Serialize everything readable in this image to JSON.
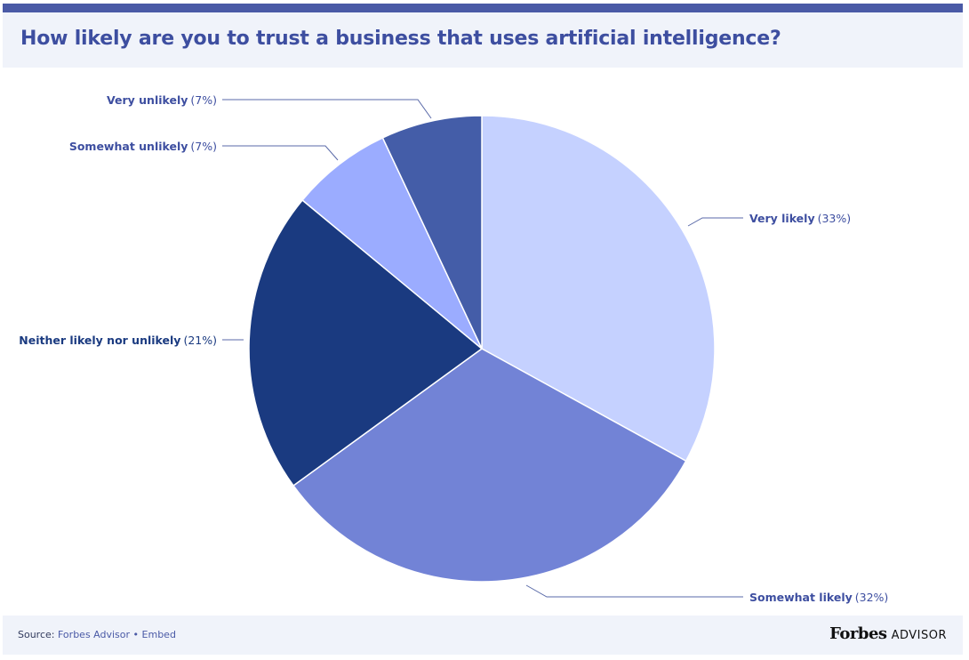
{
  "title": "How likely are you to trust a business that uses artificial intelligence?",
  "chart_data": {
    "type": "pie",
    "title": "How likely are you to trust a business that uses artificial intelligence?",
    "slices": [
      {
        "label": "Very likely",
        "pct_text": "(33%)",
        "value": 33,
        "color": "#c5d1ff"
      },
      {
        "label": "Somewhat likely",
        "pct_text": "(32%)",
        "value": 32,
        "color": "#7283d6"
      },
      {
        "label": "Neither likely nor unlikely",
        "pct_text": "(21%)",
        "value": 21,
        "color": "#1a3a80"
      },
      {
        "label": "Somewhat unlikely",
        "pct_text": "(7%)",
        "value": 7,
        "color": "#9bacff"
      },
      {
        "label": "Very unlikely",
        "pct_text": "(7%)",
        "value": 7,
        "color": "#445da8"
      }
    ]
  },
  "footer": {
    "source_prefix": "Source:",
    "source_name": "Forbes Advisor",
    "separator": "•",
    "embed": "Embed",
    "brand": "Forbes",
    "brand_sub": "ADVISOR"
  }
}
